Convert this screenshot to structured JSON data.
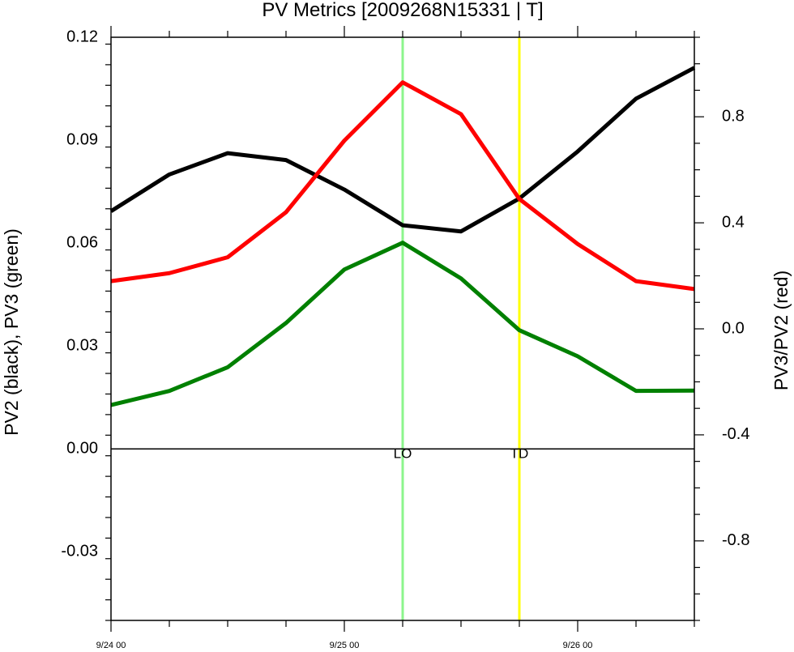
{
  "chart_data": {
    "type": "line",
    "title": "PV Metrics [2009268N15331 | T]",
    "ylabel_left": "PV2 (black), PV3 (green)",
    "ylabel_right": "PV3/PV2 (red)",
    "ylim_left": [
      -0.05,
      0.12
    ],
    "ylim_right": [
      -1.1,
      1.1
    ],
    "xlim": [
      0,
      75
    ],
    "x_tick_labels": [
      {
        "x": 0,
        "label": "9/24 00"
      },
      {
        "x": 30,
        "label": "9/25 00"
      },
      {
        "x": 60,
        "label": "9/26 00"
      }
    ],
    "y_left_ticks": [
      {
        "value": 0.12,
        "label": "0.12"
      },
      {
        "value": 0.09,
        "label": "0.09"
      },
      {
        "value": 0.06,
        "label": "0.06"
      },
      {
        "value": 0.03,
        "label": "0.03"
      },
      {
        "value": 0.0,
        "label": "0.00"
      },
      {
        "value": -0.03,
        "label": "-0.03"
      }
    ],
    "y_right_ticks": [
      {
        "value": 0.8,
        "label": "0.8"
      },
      {
        "value": 0.4,
        "label": "0.4"
      },
      {
        "value": 0.0,
        "label": "0.0"
      },
      {
        "value": -0.4,
        "label": "-0.4"
      },
      {
        "value": -0.8,
        "label": "-0.8"
      }
    ],
    "x": [
      0,
      7.5,
      15,
      22.5,
      30,
      37.5,
      45,
      52.5,
      60,
      67.5,
      75
    ],
    "series": [
      {
        "color": "#000000",
        "axis": "left",
        "values": [
          0.0693,
          0.08,
          0.0862,
          0.0842,
          0.0756,
          0.0652,
          0.0634,
          0.073,
          0.0867,
          0.1021,
          0.1111
        ]
      },
      {
        "color": "#ff0000",
        "axis": "right",
        "values": [
          0.18,
          0.21,
          0.27,
          0.44,
          0.71,
          0.93,
          0.81,
          0.49,
          0.32,
          0.18,
          0.15
        ]
      },
      {
        "color": "#008000",
        "axis": "left",
        "values": [
          0.0128,
          0.0169,
          0.0238,
          0.0367,
          0.0523,
          0.0601,
          0.0497,
          0.0346,
          0.027,
          0.0169,
          0.017
        ]
      }
    ],
    "reference_line_left": 0.0,
    "vertical_markers": [
      {
        "x": 37.5,
        "label": "LO",
        "color": "#8cf58c"
      },
      {
        "x": 52.5,
        "label": "TD",
        "color": "#ffff00"
      }
    ],
    "grid": false
  }
}
